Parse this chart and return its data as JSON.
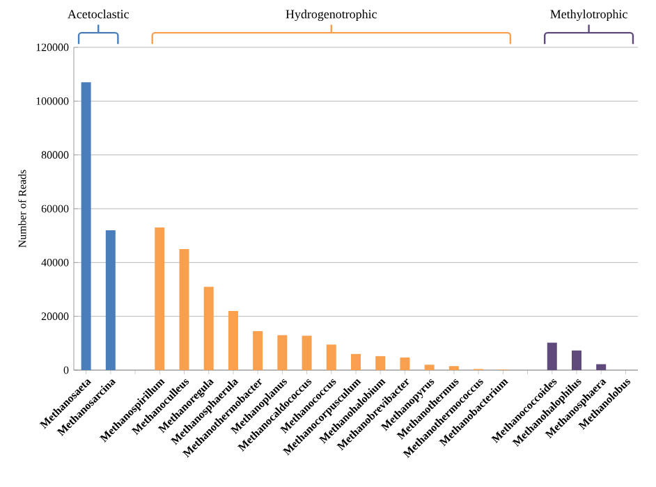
{
  "chart_data": {
    "type": "bar",
    "ylabel": "Number of Reads",
    "categories": [
      "Methanosaeta",
      "Methanosarcina",
      null,
      "Methanospirillum",
      "Methanoculleus",
      "Methanoregula",
      "Methanosphaerula",
      "Methanothermobacter",
      "Methanoplanus",
      "Methanocaldococcus",
      "Methanococcus",
      "Methanocorpusculum",
      "Methanohalobium",
      "Methanobrevibacter",
      "Methanopyrus",
      "Methanothermus",
      "Methanothermococcus",
      "Methanobacterium",
      null,
      "Methanococcoides",
      "Methanohalophilus",
      "Methanosphaera",
      "Methanolobus"
    ],
    "values": [
      107000,
      52000,
      null,
      53000,
      45000,
      31000,
      22000,
      14500,
      13000,
      12800,
      9500,
      6000,
      5200,
      4700,
      2000,
      1500,
      400,
      200,
      null,
      10200,
      7300,
      2200,
      0
    ],
    "colors": [
      "#4a7ebb",
      "#4a7ebb",
      null,
      "#f9a04e",
      "#f9a04e",
      "#f9a04e",
      "#f9a04e",
      "#f9a04e",
      "#f9a04e",
      "#f9a04e",
      "#f9a04e",
      "#f9a04e",
      "#f9a04e",
      "#f9a04e",
      "#f9a04e",
      "#f9a04e",
      "#f9a04e",
      "#f9a04e",
      null,
      "#5f4a7b",
      "#5f4a7b",
      "#5f4a7b",
      "#5f4a7b"
    ],
    "annotations": [
      "Acetoclastic",
      "Hydrogenotrophic",
      "Methylotrophic"
    ],
    "ylim": [
      0,
      120000
    ],
    "yticks": [
      0,
      20000,
      40000,
      60000,
      80000,
      100000,
      120000
    ],
    "grid": "y",
    "legend": false
  }
}
